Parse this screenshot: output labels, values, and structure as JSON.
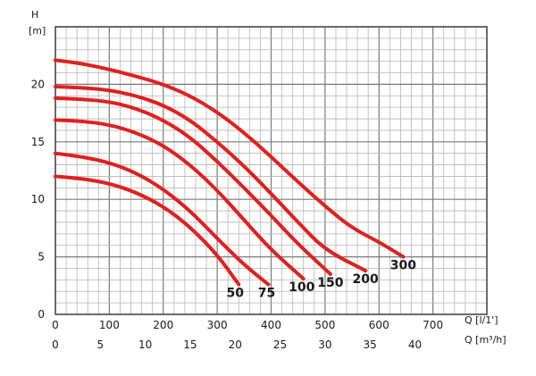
{
  "chart_data": {
    "type": "line",
    "ylabel": "H",
    "yunit": "[m]",
    "xlabel_primary": "Q [l/1']",
    "xlabel_secondary": "Q [m³/h]",
    "xlim": [
      0,
      800
    ],
    "ylim": [
      0,
      25
    ],
    "x_ticks": [
      0,
      100,
      200,
      300,
      400,
      500,
      600,
      700
    ],
    "x_secondary_ticks": [
      0,
      5,
      10,
      15,
      20,
      25,
      30,
      35,
      40
    ],
    "y_ticks": [
      0,
      5,
      10,
      15,
      20
    ],
    "grid": true,
    "line_color": "#e0201f",
    "series": [
      {
        "name": "50",
        "points": [
          [
            0,
            12.0
          ],
          [
            50,
            11.8
          ],
          [
            100,
            11.4
          ],
          [
            150,
            10.6
          ],
          [
            200,
            9.4
          ],
          [
            250,
            7.6
          ],
          [
            300,
            5.2
          ],
          [
            340,
            2.6
          ]
        ]
      },
      {
        "name": "75",
        "points": [
          [
            0,
            14.0
          ],
          [
            50,
            13.7
          ],
          [
            100,
            13.2
          ],
          [
            150,
            12.3
          ],
          [
            200,
            10.9
          ],
          [
            250,
            9.0
          ],
          [
            300,
            6.6
          ],
          [
            350,
            4.3
          ],
          [
            395,
            2.6
          ]
        ]
      },
      {
        "name": "100",
        "points": [
          [
            0,
            16.9
          ],
          [
            50,
            16.8
          ],
          [
            100,
            16.5
          ],
          [
            150,
            15.8
          ],
          [
            200,
            14.7
          ],
          [
            250,
            13.0
          ],
          [
            300,
            10.8
          ],
          [
            350,
            8.2
          ],
          [
            400,
            5.6
          ],
          [
            460,
            3.1
          ]
        ]
      },
      {
        "name": "150",
        "points": [
          [
            0,
            18.8
          ],
          [
            50,
            18.7
          ],
          [
            100,
            18.5
          ],
          [
            150,
            17.9
          ],
          [
            200,
            16.9
          ],
          [
            250,
            15.4
          ],
          [
            300,
            13.3
          ],
          [
            350,
            11.0
          ],
          [
            400,
            8.6
          ],
          [
            450,
            6.1
          ],
          [
            510,
            3.5
          ]
        ]
      },
      {
        "name": "200",
        "points": [
          [
            0,
            19.8
          ],
          [
            50,
            19.7
          ],
          [
            100,
            19.5
          ],
          [
            150,
            19.0
          ],
          [
            200,
            18.2
          ],
          [
            250,
            16.9
          ],
          [
            300,
            15.0
          ],
          [
            350,
            12.9
          ],
          [
            400,
            10.5
          ],
          [
            450,
            8.0
          ],
          [
            500,
            5.6
          ],
          [
            575,
            3.8
          ]
        ]
      },
      {
        "name": "300",
        "points": [
          [
            0,
            22.1
          ],
          [
            50,
            21.8
          ],
          [
            100,
            21.3
          ],
          [
            150,
            20.7
          ],
          [
            200,
            20.0
          ],
          [
            250,
            19.0
          ],
          [
            300,
            17.6
          ],
          [
            350,
            15.8
          ],
          [
            400,
            13.7
          ],
          [
            450,
            11.5
          ],
          [
            500,
            9.4
          ],
          [
            550,
            7.5
          ],
          [
            600,
            6.3
          ],
          [
            645,
            5.0
          ]
        ]
      }
    ]
  }
}
